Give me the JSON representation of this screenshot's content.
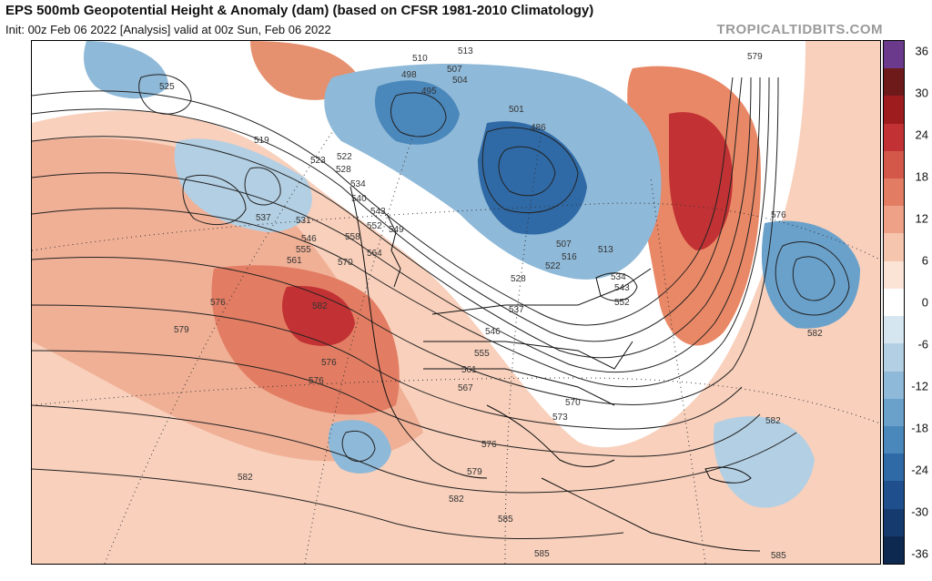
{
  "header": {
    "title": "EPS 500mb Geopotential Height & Anomaly (dam) (based on CFSR 1981-2010 Climatology)",
    "subtitle": "Init: 00z Feb 06 2022   [Analysis]   valid at 00z Sun, Feb 06 2022",
    "brand": "TROPICALTIDBITS.COM"
  },
  "colorbar": {
    "ticks": [
      "36",
      "30",
      "24",
      "18",
      "12",
      "6",
      "0",
      "-6",
      "-12",
      "-18",
      "-24",
      "-30",
      "-36"
    ],
    "colors": [
      "#6b3a8c",
      "#6e1a1a",
      "#9e1b1e",
      "#c23234",
      "#d4584a",
      "#e27d63",
      "#eea187",
      "#f6c5ad",
      "#fbe4d6",
      "#ffffff",
      "#d6e6f0",
      "#b3cfe3",
      "#8fb9d8",
      "#6aa1cb",
      "#4a87bb",
      "#2f6aa6",
      "#1f4f8c",
      "#153a6e",
      "#0e2950"
    ]
  },
  "map": {
    "contour_labels": [
      "525",
      "519",
      "523",
      "528",
      "522",
      "534",
      "537",
      "531",
      "540",
      "543",
      "546",
      "549",
      "552",
      "555",
      "558",
      "561",
      "564",
      "570",
      "576",
      "579",
      "582",
      "510",
      "513",
      "498",
      "495",
      "504",
      "507",
      "501",
      "486",
      "507",
      "513",
      "516",
      "522",
      "528",
      "534",
      "537",
      "543",
      "546",
      "552",
      "555",
      "561",
      "567",
      "570",
      "573",
      "576",
      "579",
      "582",
      "585",
      "576",
      "576",
      "582",
      "585",
      "582",
      "585",
      "582",
      "576",
      "579"
    ]
  }
}
